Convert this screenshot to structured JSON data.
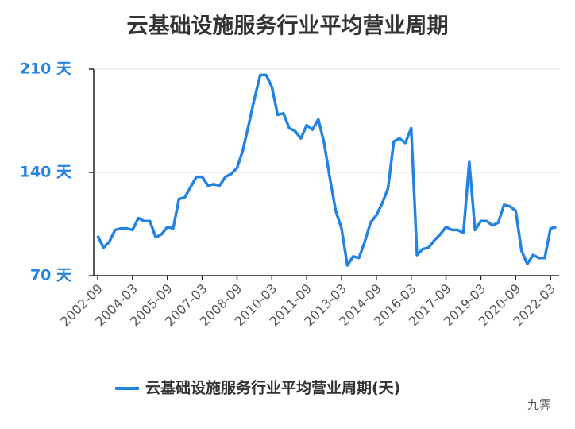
{
  "chart_data": {
    "type": "line",
    "title": "云基础设施服务行业平均营业周期",
    "categories": [
      "2002-09",
      null,
      null,
      null,
      null,
      null,
      "2004-03",
      null,
      null,
      null,
      null,
      null,
      "2005-09",
      null,
      null,
      null,
      null,
      null,
      "2007-03",
      null,
      null,
      null,
      null,
      null,
      "2008-09",
      null,
      null,
      null,
      null,
      null,
      "2010-03",
      null,
      null,
      null,
      null,
      null,
      "2011-09",
      null,
      null,
      null,
      null,
      null,
      "2013-03",
      null,
      null,
      null,
      null,
      null,
      "2014-09",
      null,
      null,
      null,
      null,
      null,
      "2016-03",
      null,
      null,
      null,
      null,
      null,
      "2017-09",
      null,
      null,
      null,
      null,
      null,
      "2019-03",
      null,
      null,
      null,
      null,
      null,
      "2020-09",
      null,
      null,
      null,
      null,
      null,
      "2022-03",
      null
    ],
    "series": [
      {
        "name": "云基础设施服务行业平均营业周期(天)",
        "color": "#2383e2",
        "values": [
          97,
          89,
          93,
          101,
          102,
          102,
          101,
          109,
          107,
          107,
          96,
          98,
          103,
          102,
          122,
          123,
          130,
          137,
          137,
          131,
          132,
          131,
          137,
          139,
          143,
          155,
          172,
          190,
          206,
          206,
          198,
          179,
          180,
          170,
          168,
          163,
          172,
          169,
          176,
          160,
          136,
          114,
          102,
          77,
          83,
          82,
          93,
          106,
          111,
          119,
          129,
          161,
          163,
          160,
          170,
          84,
          88,
          89,
          94,
          98,
          103,
          101,
          101,
          99,
          147,
          101,
          107,
          107,
          104,
          106,
          118,
          117,
          114,
          87,
          78,
          84,
          82,
          82,
          102,
          103
        ]
      }
    ],
    "ylim": [
      70,
      210
    ],
    "yticks": [
      {
        "value": 70,
        "label": "70 天"
      },
      {
        "value": 140,
        "label": "140 天"
      },
      {
        "value": 210,
        "label": "210 天"
      }
    ],
    "grid": true,
    "legend": "bottom",
    "watermark": "九霁"
  }
}
